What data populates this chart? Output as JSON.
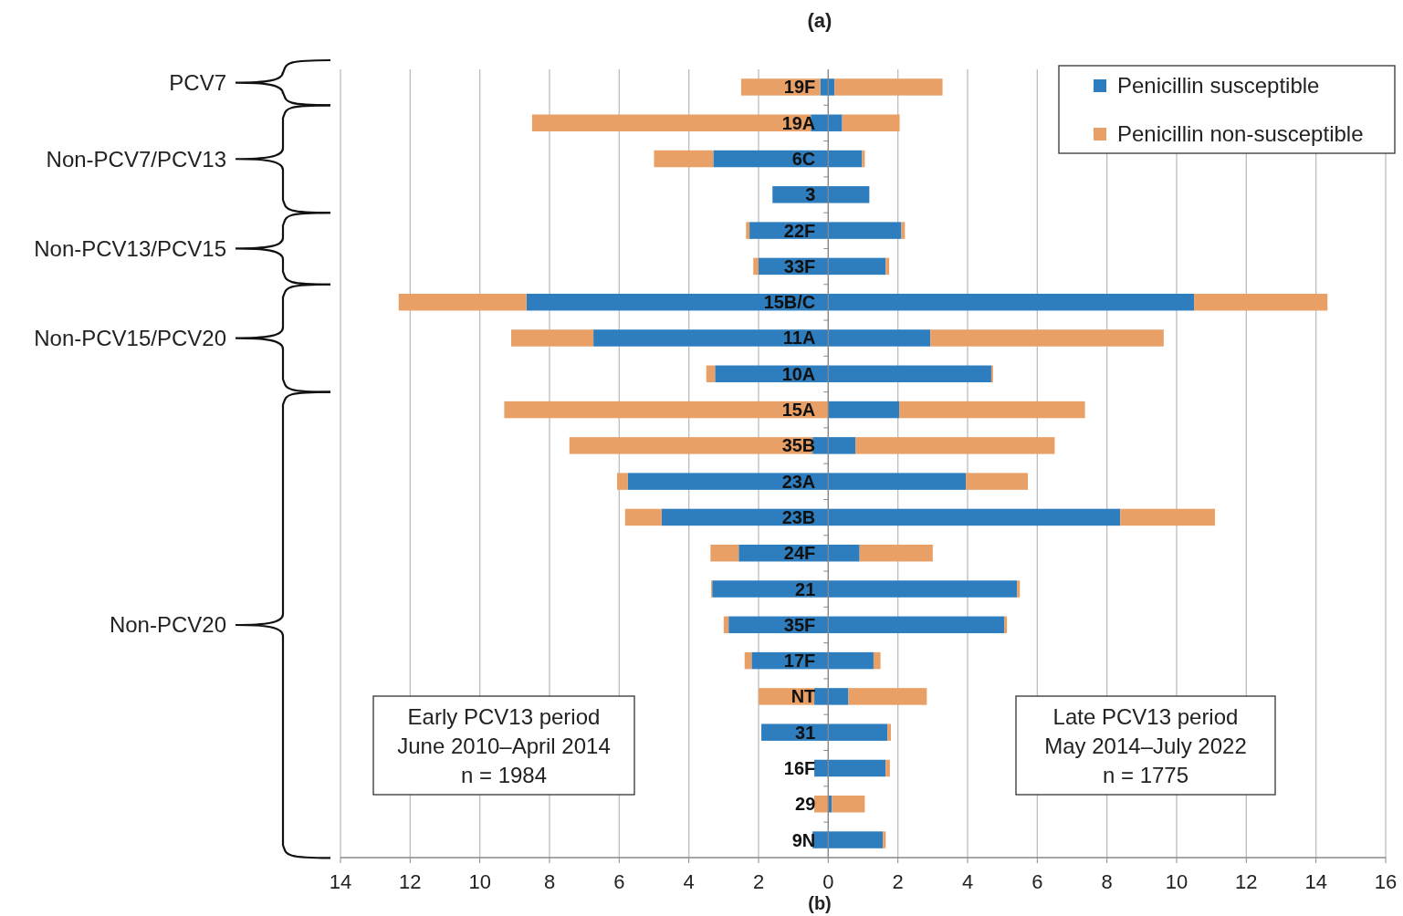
{
  "chart_data": {
    "type": "bar",
    "orientation": "horizontal",
    "stacked": true,
    "categories": [
      "19F",
      "19A",
      "6C",
      "3",
      "22F",
      "33F",
      "15B/C",
      "11A",
      "10A",
      "15A",
      "35B",
      "23A",
      "23B",
      "24F",
      "21",
      "35F",
      "17F",
      "NT",
      "31",
      "16F",
      "29",
      "9N"
    ],
    "series": [
      {
        "name": "Penicillin susceptible",
        "color": "#2e7ebf",
        "values": [
          0.18,
          0.4,
          0.97,
          1.18,
          2.1,
          1.65,
          10.5,
          2.93,
          4.68,
          2.04,
          0.78,
          3.95,
          8.38,
          0.9,
          5.42,
          5.05,
          1.3,
          0.58,
          1.7,
          1.65,
          0.1,
          1.57
        ]
      },
      {
        "name": "Penicillin non-susceptible",
        "color": "#e8a066",
        "values": [
          3.1,
          1.65,
          0.08,
          0,
          0.1,
          0.1,
          3.83,
          6.7,
          0.05,
          5.33,
          5.72,
          1.78,
          2.72,
          2.1,
          0.08,
          0.08,
          0.2,
          2.25,
          0.1,
          0.12,
          0.95,
          0.08
        ]
      },
      {
        "color": "#2e7ebf",
        "values": [
          -0.23,
          -0.5,
          -3.3,
          -1.6,
          -2.26,
          -2.0,
          -8.66,
          -6.74,
          -3.25,
          0,
          -0.45,
          -5.75,
          -4.78,
          -2.57,
          -3.33,
          -2.86,
          -2.2,
          -0.4,
          -1.92,
          -0.4,
          0,
          -0.45
        ]
      },
      {
        "color": "#e8a066",
        "values": [
          -2.27,
          -8.0,
          -1.7,
          0,
          -0.1,
          -0.15,
          -3.67,
          -2.36,
          -0.25,
          -9.3,
          -6.98,
          -0.31,
          -1.05,
          -0.81,
          -0.03,
          -0.14,
          -0.2,
          -1.6,
          0,
          0,
          -0.4,
          0
        ]
      }
    ],
    "xlim": [
      -14,
      16
    ],
    "xticks": [
      {
        "value": -14,
        "label": "14"
      },
      {
        "value": -12,
        "label": "12"
      },
      {
        "value": -10,
        "label": "10"
      },
      {
        "value": -8,
        "label": "8"
      },
      {
        "value": -6,
        "label": "6"
      },
      {
        "value": -4,
        "label": "4"
      },
      {
        "value": -2,
        "label": "2"
      },
      0,
      2,
      4,
      6,
      8,
      10,
      12,
      14,
      16
    ],
    "grid": "x",
    "legend": "top right",
    "annotations": [
      "(a)",
      "PCV7",
      "Non-PCV7/PCV13",
      "Non-PCV13/PCV15",
      "Non-PCV15/PCV20",
      "Non-PCV20",
      "Early PCV13 period\nJune 2010–April 2014\nn = 1984",
      "Late PCV13 period\nMay 2014–July 2022\nn = 1775",
      "(b)"
    ]
  }
}
